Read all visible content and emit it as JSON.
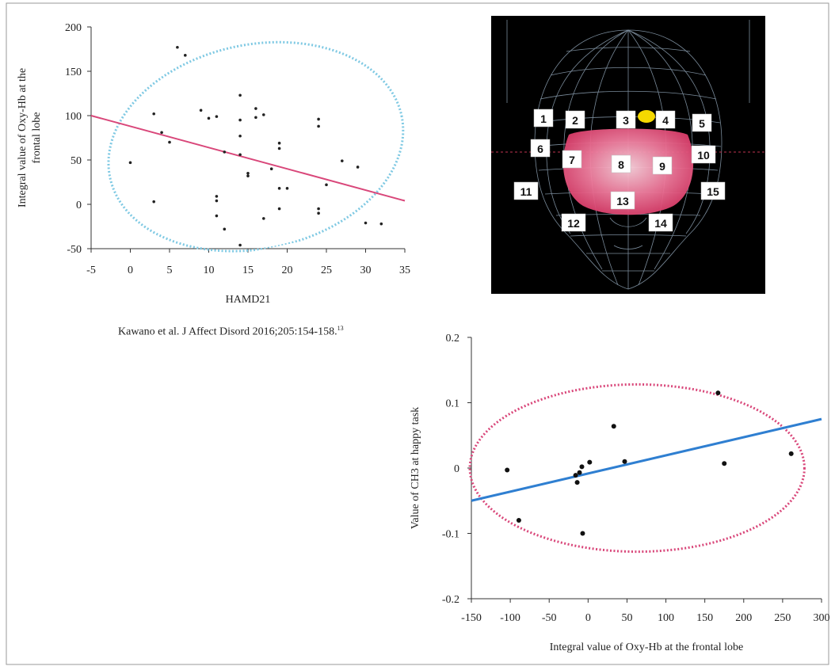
{
  "figure_note": {
    "citation": "Kawano et al. J Affect Disord 2016;205:154-158.",
    "citation_ref": "13"
  },
  "head_diagram": {
    "channels": [
      "1",
      "2",
      "3",
      "4",
      "5",
      "6",
      "7",
      "8",
      "9",
      "10",
      "11",
      "12",
      "13",
      "14",
      "15"
    ],
    "colors": {
      "background": "#000000",
      "mesh": "#8fa3b5",
      "activation": "#e84a76",
      "marker": "#f5d800"
    }
  },
  "chart_data": [
    {
      "type": "scatter",
      "title": "",
      "xlabel": "HAMD21",
      "ylabel": "Integral value of Oxy-Hb at the frontal lobe",
      "ylabel_lines": [
        "Integral value of Oxy-Hb at the",
        "frontal lobe"
      ],
      "xlim": [
        -5,
        35
      ],
      "ylim": [
        -50,
        200
      ],
      "xticks": [
        -5,
        0,
        5,
        10,
        15,
        20,
        25,
        30,
        35
      ],
      "yticks": [
        -50,
        0,
        50,
        100,
        150,
        200
      ],
      "xtick_labels": [
        "-5",
        "0",
        "5",
        "10",
        "15",
        "20",
        "25",
        "30",
        "35"
      ],
      "ytick_labels": [
        "-50",
        "0",
        "50",
        "100",
        "150",
        "200"
      ],
      "grid": false,
      "points": [
        [
          6,
          177
        ],
        [
          7,
          168
        ],
        [
          3,
          102
        ],
        [
          4,
          81
        ],
        [
          5,
          70
        ],
        [
          0,
          47
        ],
        [
          3,
          3
        ],
        [
          9,
          106
        ],
        [
          10,
          97
        ],
        [
          11,
          99
        ],
        [
          11,
          9
        ],
        [
          11,
          4
        ],
        [
          11,
          -13
        ],
        [
          12,
          -28
        ],
        [
          12,
          59
        ],
        [
          14,
          123
        ],
        [
          14,
          95
        ],
        [
          14,
          77
        ],
        [
          14,
          56
        ],
        [
          14,
          -46
        ],
        [
          15,
          35
        ],
        [
          15,
          32
        ],
        [
          16,
          108
        ],
        [
          16,
          98
        ],
        [
          17,
          101
        ],
        [
          17,
          -16
        ],
        [
          18,
          40
        ],
        [
          19,
          69
        ],
        [
          19,
          63
        ],
        [
          19,
          18
        ],
        [
          19,
          -5
        ],
        [
          20,
          18
        ],
        [
          24,
          96
        ],
        [
          24,
          88
        ],
        [
          24,
          -5
        ],
        [
          24,
          -10
        ],
        [
          25,
          22
        ],
        [
          27,
          49
        ],
        [
          29,
          42
        ],
        [
          30,
          -21
        ],
        [
          32,
          -22
        ]
      ],
      "regression_line": [
        [
          -5,
          100
        ],
        [
          35,
          4
        ]
      ],
      "confidence_ellipse": {
        "center": [
          16,
          65
        ],
        "radius_x": 19,
        "radius_y": 115,
        "rotation_deg": -12
      },
      "colors": {
        "points": "#222222",
        "regression": "#d9477a",
        "ellipse": "#7fc9e3"
      }
    },
    {
      "type": "scatter",
      "title": "",
      "xlabel": "Integral value of Oxy-Hb at the frontal lobe",
      "ylabel": "Value of CH3 at happy task",
      "xlim": [
        -150,
        300
      ],
      "ylim": [
        -0.2,
        0.2
      ],
      "xticks": [
        -150,
        -100,
        -50,
        0,
        50,
        100,
        150,
        200,
        250,
        300
      ],
      "yticks": [
        -0.2,
        -0.1,
        0,
        0.1,
        0.2
      ],
      "xtick_labels": [
        "-150",
        "-100",
        "-50",
        "0",
        "50",
        "100",
        "150",
        "200",
        "250",
        "300"
      ],
      "ytick_labels": [
        "-0.2",
        "-0.1",
        "0",
        "0.1",
        "0.2"
      ],
      "grid": false,
      "points": [
        [
          -104,
          -0.003
        ],
        [
          -89,
          -0.08
        ],
        [
          -16,
          -0.011
        ],
        [
          -14,
          -0.022
        ],
        [
          -11,
          -0.007
        ],
        [
          -8,
          0.002
        ],
        [
          -7,
          -0.1
        ],
        [
          2,
          0.009
        ],
        [
          33,
          0.064
        ],
        [
          47,
          0.01
        ],
        [
          167,
          0.115
        ],
        [
          175,
          0.007
        ],
        [
          261,
          0.022
        ]
      ],
      "regression_line": [
        [
          -150,
          -0.05
        ],
        [
          300,
          0.075
        ]
      ],
      "confidence_ellipse": {
        "center": [
          63,
          0.0
        ],
        "radius_x": 215,
        "radius_y": 0.128,
        "rotation_deg": 0
      },
      "colors": {
        "points": "#111111",
        "regression": "#2f7fd1",
        "ellipse": "#d9477a"
      }
    }
  ]
}
